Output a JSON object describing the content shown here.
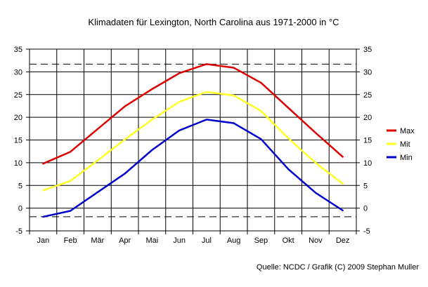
{
  "chart_data": {
    "type": "line",
    "title": "Klimadaten für Lexington, North Carolina aus 1971-2000 in °C",
    "source": "Quelle: NCDC / Grafik (C) 2009 Stephan Muller",
    "categories": [
      "Jan",
      "Feb",
      "Mär",
      "Apr",
      "Mai",
      "Jun",
      "Jul",
      "Aug",
      "Sep",
      "Okt",
      "Nov",
      "Dez"
    ],
    "ylim": [
      -5,
      35
    ],
    "yticks": [
      -5,
      0,
      5,
      10,
      15,
      20,
      25,
      30,
      35
    ],
    "grid": true,
    "legend_position": "right",
    "series": [
      {
        "name": "Max",
        "color": "#dd0000",
        "values": [
          9.8,
          12.4,
          17.4,
          22.4,
          26.2,
          29.7,
          31.7,
          30.9,
          27.6,
          22.1,
          16.6,
          11.3
        ]
      },
      {
        "name": "Mit",
        "color": "#ffff22",
        "values": [
          3.9,
          6.0,
          10.5,
          15.1,
          19.5,
          23.4,
          25.6,
          24.8,
          21.4,
          15.4,
          10.0,
          5.4
        ]
      },
      {
        "name": "Min",
        "color": "#0000cc",
        "values": [
          -1.9,
          -0.6,
          3.5,
          7.6,
          12.8,
          17.1,
          19.5,
          18.7,
          15.2,
          8.6,
          3.4,
          -0.5
        ]
      }
    ],
    "reference_lines": [
      31.7,
      -1.9
    ]
  }
}
